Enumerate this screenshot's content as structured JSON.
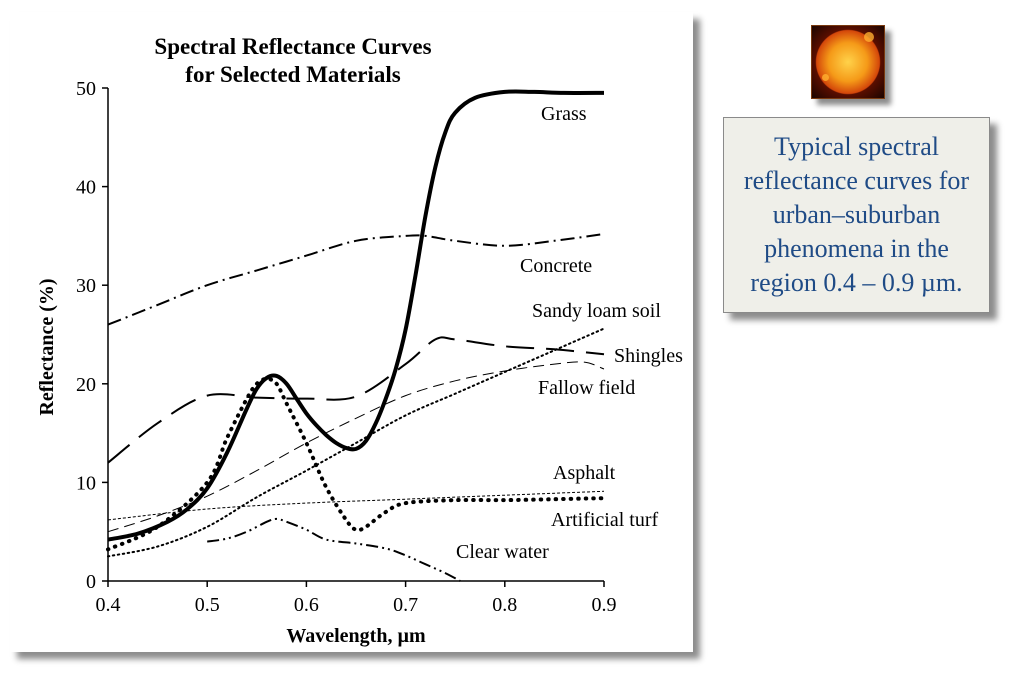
{
  "caption": "Typical spectral reflectance curves for urban–suburban phenomena in the region 0.4 – 0.9 µm.",
  "chart_data": {
    "type": "line",
    "title": [
      "Spectral Reflectance Curves",
      "for Selected Materials"
    ],
    "xlabel": "Wavelength, µm",
    "ylabel": "Reflectance (%)",
    "xlim": [
      0.4,
      0.9
    ],
    "ylim": [
      0,
      50
    ],
    "xticks": [
      "0.4",
      "0.5",
      "0.6",
      "0.7",
      "0.8",
      "0.9"
    ],
    "yticks": [
      "0",
      "10",
      "20",
      "30",
      "40",
      "50"
    ],
    "grid": false,
    "series": [
      {
        "name": "Grass",
        "style": "solid-thick",
        "x": [
          0.4,
          0.43,
          0.46,
          0.48,
          0.5,
          0.52,
          0.54,
          0.55,
          0.56,
          0.57,
          0.58,
          0.59,
          0.6,
          0.61,
          0.62,
          0.63,
          0.64,
          0.65,
          0.66,
          0.67,
          0.68,
          0.69,
          0.7,
          0.71,
          0.72,
          0.73,
          0.74,
          0.75,
          0.77,
          0.8,
          0.83,
          0.86,
          0.9
        ],
        "y": [
          4.2,
          4.8,
          6,
          7.3,
          9.4,
          13,
          17.5,
          19.5,
          20.6,
          20.8,
          20,
          18.5,
          17,
          15.8,
          14.8,
          14,
          13.5,
          13.4,
          14.2,
          16,
          18.5,
          21.5,
          25.5,
          31,
          37,
          42,
          45.5,
          47.5,
          49,
          49.6,
          49.6,
          49.5,
          49.5
        ]
      },
      {
        "name": "Concrete",
        "style": "dash-dot",
        "x": [
          0.4,
          0.45,
          0.5,
          0.55,
          0.6,
          0.65,
          0.7,
          0.72,
          0.75,
          0.8,
          0.85,
          0.9
        ],
        "y": [
          26,
          28,
          30,
          31.5,
          33,
          34.5,
          35,
          35,
          34.5,
          34,
          34.5,
          35.2
        ]
      },
      {
        "name": "Sandy loam soil",
        "style": "dotted",
        "x": [
          0.4,
          0.45,
          0.5,
          0.55,
          0.6,
          0.65,
          0.7,
          0.75,
          0.8,
          0.85,
          0.9
        ],
        "y": [
          2.5,
          3.5,
          5.5,
          8.5,
          11.2,
          14,
          16.8,
          19,
          21.2,
          23.4,
          25.6
        ]
      },
      {
        "name": "Shingles",
        "style": "long-dash",
        "x": [
          0.4,
          0.45,
          0.5,
          0.55,
          0.6,
          0.65,
          0.7,
          0.73,
          0.75,
          0.8,
          0.85,
          0.9
        ],
        "y": [
          12,
          16,
          18.8,
          18.6,
          18.5,
          18.7,
          22,
          24.5,
          24.5,
          23.8,
          23.5,
          23
        ]
      },
      {
        "name": "Fallow field",
        "style": "thin-dash",
        "x": [
          0.4,
          0.45,
          0.5,
          0.55,
          0.6,
          0.65,
          0.7,
          0.75,
          0.8,
          0.85,
          0.88,
          0.9
        ],
        "y": [
          5,
          6.6,
          8.6,
          11.2,
          14,
          16.5,
          18.8,
          20.3,
          21.3,
          22,
          22.2,
          21.5
        ]
      },
      {
        "name": "Asphalt",
        "style": "fine-dash",
        "x": [
          0.4,
          0.5,
          0.6,
          0.7,
          0.8,
          0.9
        ],
        "y": [
          6.2,
          7.3,
          7.9,
          8.3,
          8.7,
          9.1
        ]
      },
      {
        "name": "Artificial turf",
        "style": "heavy-dot",
        "x": [
          0.4,
          0.45,
          0.5,
          0.52,
          0.54,
          0.55,
          0.56,
          0.57,
          0.58,
          0.6,
          0.62,
          0.64,
          0.65,
          0.66,
          0.68,
          0.7,
          0.75,
          0.8,
          0.85,
          0.9
        ],
        "y": [
          3.2,
          5.5,
          10,
          14.5,
          18.5,
          20,
          20.5,
          20,
          18,
          14,
          9.5,
          6.2,
          5.2,
          5.5,
          7,
          7.9,
          8.2,
          8.2,
          8.3,
          8.4
        ]
      },
      {
        "name": "Clear water",
        "style": "dash-dot-dot",
        "x": [
          0.5,
          0.52,
          0.54,
          0.56,
          0.57,
          0.58,
          0.6,
          0.62,
          0.65,
          0.68,
          0.7,
          0.72,
          0.74,
          0.755
        ],
        "y": [
          4,
          4.3,
          5,
          6,
          6.3,
          6,
          5.2,
          4.2,
          3.8,
          3.3,
          2.6,
          1.7,
          0.8,
          0
        ]
      }
    ]
  }
}
